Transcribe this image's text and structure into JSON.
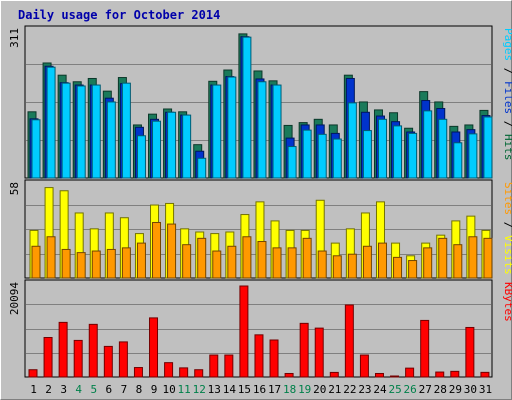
{
  "chart_data": {
    "title": "Daily usage for October 2014",
    "days": [
      "1",
      "2",
      "3",
      "4",
      "5",
      "6",
      "7",
      "8",
      "9",
      "10",
      "11",
      "12",
      "13",
      "14",
      "15",
      "16",
      "17",
      "18",
      "19",
      "20",
      "21",
      "22",
      "23",
      "24",
      "25",
      "26",
      "27",
      "28",
      "29",
      "30",
      "31"
    ],
    "weekend_days": [
      "4",
      "5",
      "11",
      "12",
      "18",
      "19",
      "25",
      "26"
    ],
    "panels": [
      {
        "type": "bar",
        "max_label": "311",
        "ymax": 311,
        "right_label": [
          "Pages",
          " / ",
          "Files",
          " / ",
          "Hits"
        ],
        "right_label_colors": [
          "#00ccff",
          "#000000",
          "#0033cc",
          "#000000",
          "#006633"
        ],
        "series": [
          {
            "name": "Hits",
            "color": "#1a7a5a",
            "values": [
              141,
              245,
              219,
              205,
              212,
              185,
              214,
              113,
              136,
              147,
              141,
              71,
              206,
              230,
              307,
              228,
              207,
              112,
              118,
              125,
              113,
              219,
              162,
              145,
              139,
              106,
              184,
              162,
              110,
              113,
              144
            ]
          },
          {
            "name": "Files",
            "color": "#0033cc",
            "values": [
              126,
              238,
              203,
              198,
              198,
              170,
              201,
              108,
              125,
              140,
              134,
              57,
              198,
              216,
              301,
              211,
              198,
              85,
              113,
              113,
              95,
              212,
              140,
              132,
              120,
              98,
              165,
              148,
              98,
              103,
              133
            ]
          },
          {
            "name": "Pages",
            "color": "#00ccff",
            "values": [
              124,
              236,
              202,
              196,
              198,
              162,
              202,
              90,
              121,
              140,
              134,
              42,
              198,
              215,
              300,
              205,
              198,
              67,
              102,
              93,
              83,
              160,
              101,
              125,
              111,
              95,
              143,
              125,
              75,
              94,
              130
            ]
          }
        ]
      },
      {
        "type": "bar",
        "max_label": "58",
        "ymax": 58,
        "right_label": [
          "Sites",
          " / ",
          "Visits"
        ],
        "right_label_colors": [
          "#ff9900",
          "#000000",
          "#ffff00"
        ],
        "series": [
          {
            "name": "Visits",
            "color": "#ffff00",
            "values": [
              30,
              57,
              55,
              41,
              31,
              41,
              38,
              28,
              46,
              47,
              31,
              29,
              28,
              29,
              40,
              48,
              36,
              30,
              30,
              49,
              22,
              31,
              41,
              48,
              22,
              14,
              22,
              27,
              36,
              39,
              30
            ]
          },
          {
            "name": "Sites",
            "color": "#ff9900",
            "values": [
              20,
              26,
              18,
              16,
              17,
              18,
              19,
              22,
              35,
              34,
              21,
              25,
              17,
              20,
              26,
              23,
              19,
              19,
              25,
              17,
              14,
              15,
              20,
              22,
              13,
              11,
              19,
              25,
              21,
              26,
              25
            ]
          }
        ]
      },
      {
        "type": "bar",
        "max_label": "20094",
        "ymax": 20094,
        "right_label": [
          "KBytes"
        ],
        "right_label_colors": [
          "#ff0000"
        ],
        "series": [
          {
            "name": "KBytes",
            "color": "#ff0000",
            "values": [
              1609,
              8722,
              12062,
              8079,
              11624,
              6756,
              7751,
              2091,
              13051,
              3169,
              2014,
              1609,
              4849,
              4849,
              20094,
              9311,
              8171,
              776,
              11845,
              10794,
              1013,
              15902,
              4849,
              776,
              140,
              1958,
              12494,
              1094,
              1247,
              10938,
              1024
            ]
          }
        ]
      }
    ]
  }
}
